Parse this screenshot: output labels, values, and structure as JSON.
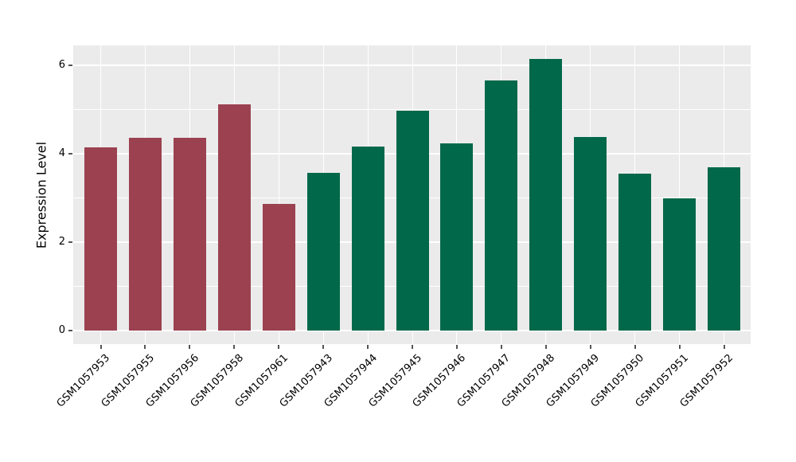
{
  "figure": {
    "background": "#ffffff",
    "panel_background": "#ebebeb",
    "grid_color": "#ffffff",
    "tick_color": "#555555",
    "text_color": "#000000"
  },
  "chart_data": {
    "type": "bar",
    "title": "",
    "xlabel": "",
    "ylabel": "Expression Level",
    "categories": [
      "GSM1057953",
      "GSM1057955",
      "GSM1057956",
      "GSM1057958",
      "GSM1057961",
      "GSM1057943",
      "GSM1057944",
      "GSM1057945",
      "GSM1057946",
      "GSM1057947",
      "GSM1057948",
      "GSM1057949",
      "GSM1057950",
      "GSM1057951",
      "GSM1057952"
    ],
    "values": [
      4.14,
      4.35,
      4.35,
      5.11,
      2.87,
      3.57,
      4.16,
      4.97,
      4.23,
      5.65,
      6.13,
      4.38,
      3.55,
      2.99,
      3.69
    ],
    "bar_colors": [
      "#9b4150",
      "#9b4150",
      "#9b4150",
      "#9b4150",
      "#9b4150",
      "#02684a",
      "#02684a",
      "#02684a",
      "#02684a",
      "#02684a",
      "#02684a",
      "#02684a",
      "#02684a",
      "#02684a",
      "#02684a"
    ],
    "groups": [
      {
        "color": "#9b4150",
        "categories": [
          "GSM1057953",
          "GSM1057955",
          "GSM1057956",
          "GSM1057958",
          "GSM1057961"
        ]
      },
      {
        "color": "#02684a",
        "categories": [
          "GSM1057943",
          "GSM1057944",
          "GSM1057945",
          "GSM1057946",
          "GSM1057947",
          "GSM1057948",
          "GSM1057949",
          "GSM1057950",
          "GSM1057951",
          "GSM1057952"
        ]
      }
    ],
    "ylim": [
      -0.31,
      6.45
    ],
    "yticks": [
      0,
      2,
      4,
      6
    ],
    "yticks_minor": [
      1,
      3,
      5
    ],
    "grid": true,
    "legend": false,
    "x_label_rotation_deg": 45
  }
}
